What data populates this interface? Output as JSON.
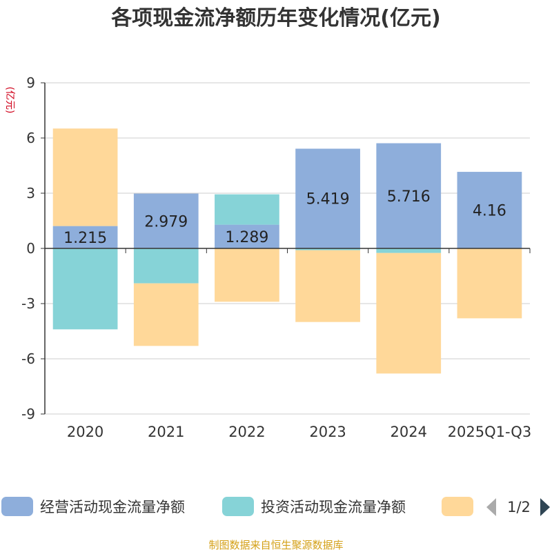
{
  "chart_data": {
    "type": "bar",
    "stacked": true,
    "title": "各项现金流净额历年变化情况(亿元)",
    "ylabel": "(亿元)",
    "ylim": [
      -9,
      9
    ],
    "yticks": [
      9,
      6,
      3,
      0,
      -3,
      -6,
      -9
    ],
    "categories": [
      "2020",
      "2021",
      "2022",
      "2023",
      "2024",
      "2025Q1-Q3"
    ],
    "series": [
      {
        "name": "经营活动现金流量净额",
        "color": "#8eaedb",
        "values": [
          1.215,
          2.979,
          1.289,
          5.419,
          5.716,
          4.16
        ],
        "labels": [
          "1.215",
          "2.979",
          "1.289",
          "5.419",
          "5.716",
          "4.16"
        ]
      },
      {
        "name": "投资活动现金流量净额",
        "color": "#86d3d7",
        "values": [
          -4.4,
          -1.9,
          1.65,
          -0.1,
          -0.25,
          0.0
        ],
        "labels": null
      },
      {
        "name": "",
        "color": "#ffd899",
        "values": [
          5.3,
          -3.4,
          -2.9,
          -3.9,
          -6.55,
          -3.8
        ],
        "labels": null
      }
    ]
  },
  "legend": {
    "page": "1/2"
  },
  "footer": {
    "source": "制图数据来自恒生聚源数据库"
  }
}
